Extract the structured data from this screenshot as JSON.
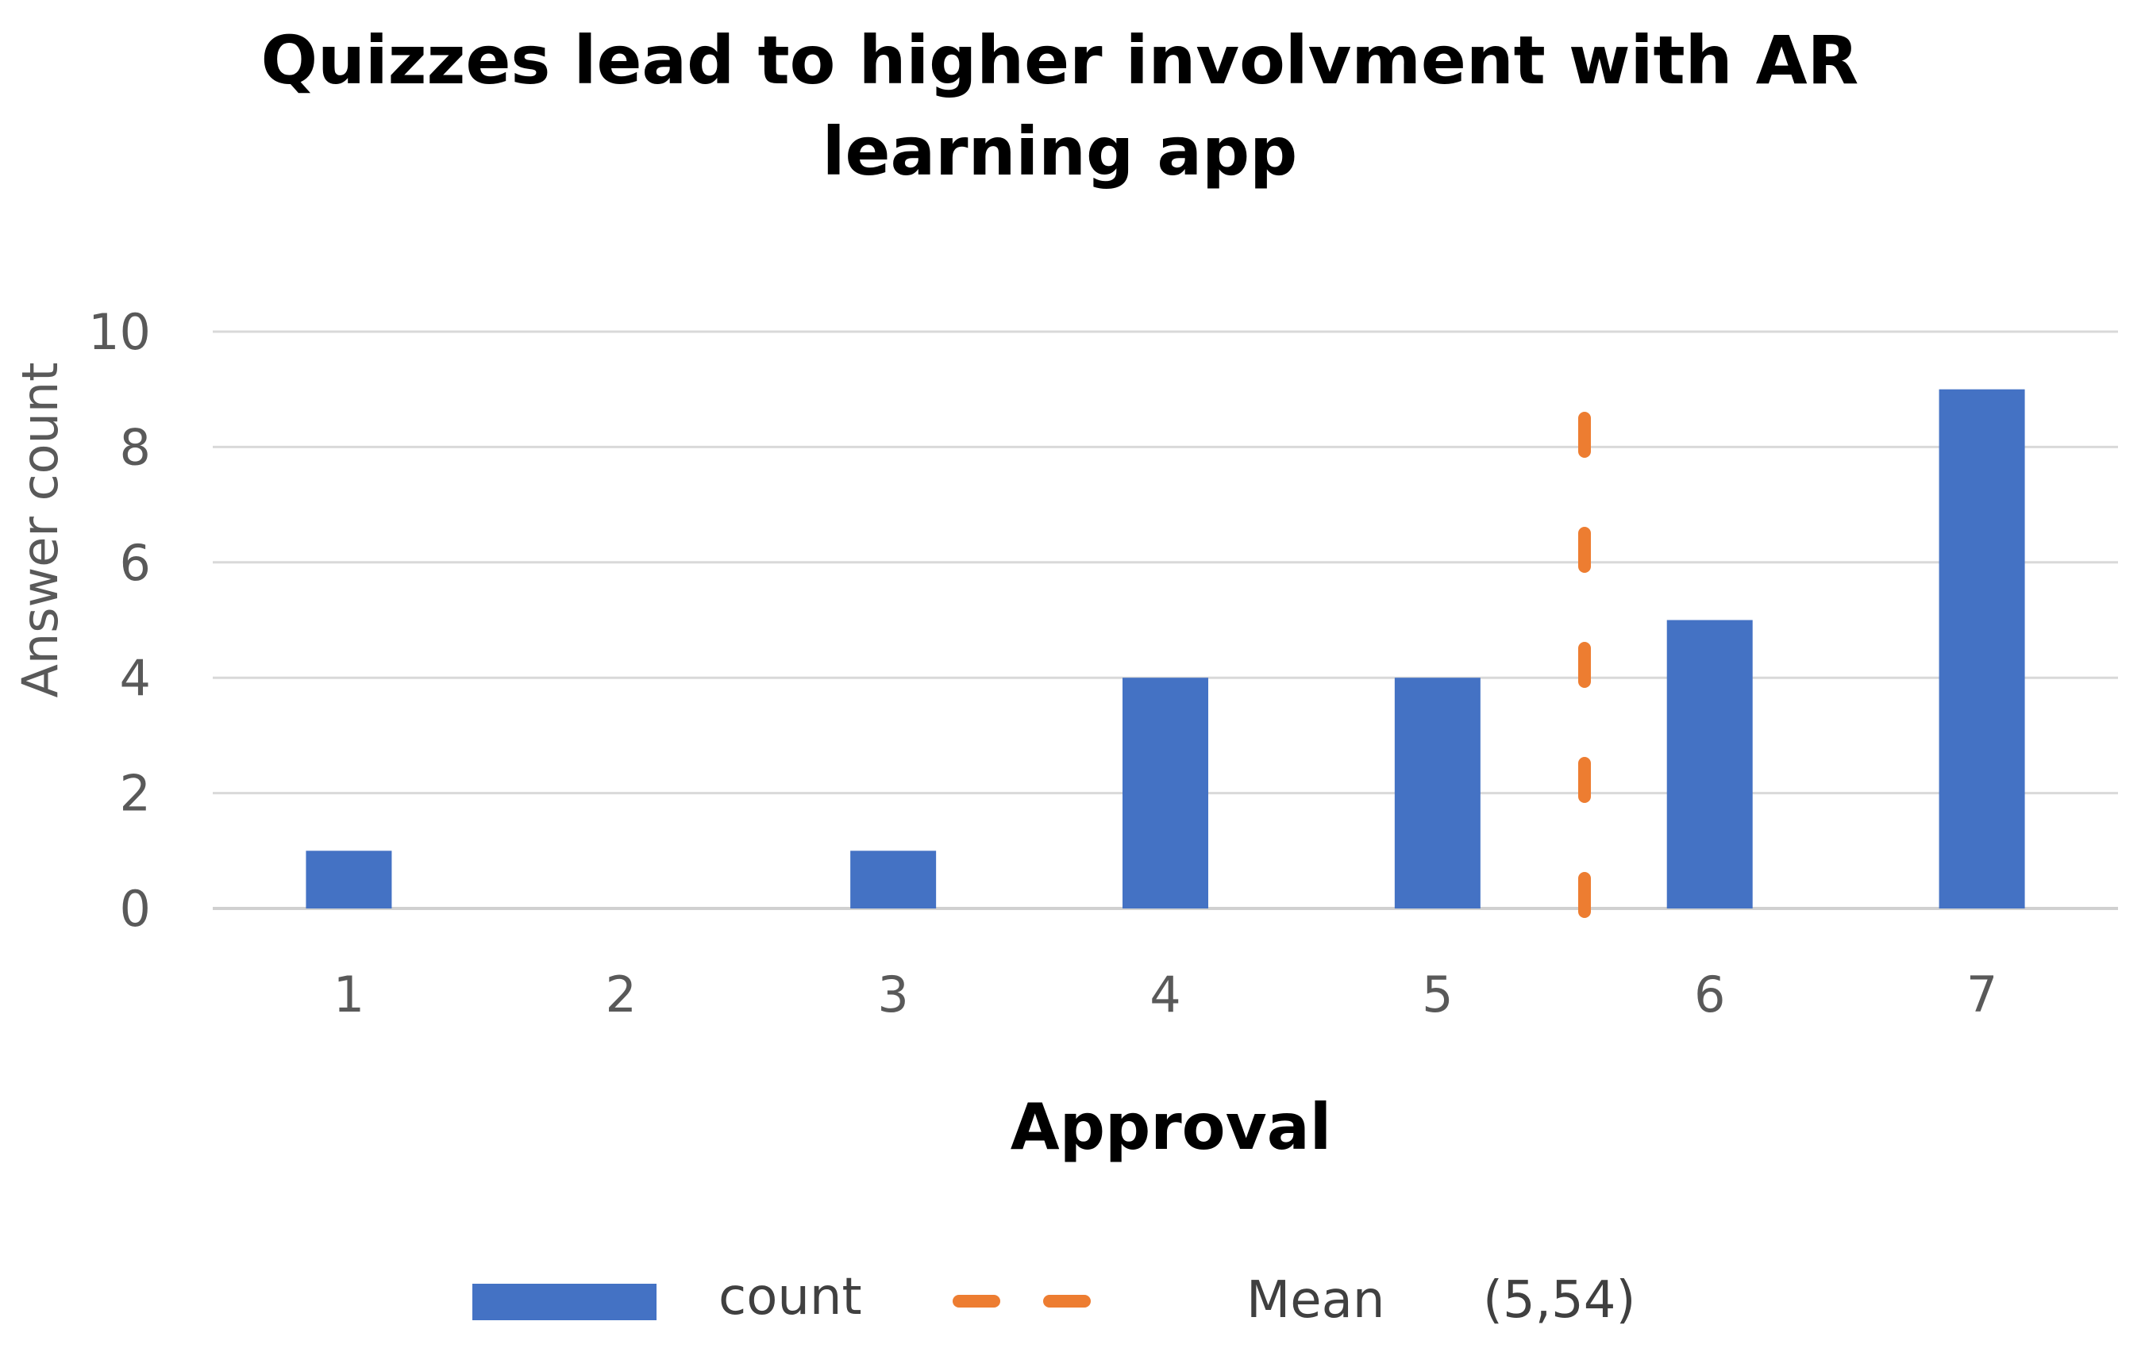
{
  "chart_data": {
    "type": "bar",
    "title_lines": [
      "Quizzes lead to higher involvment with AR",
      "learning app"
    ],
    "xlabel": "Approval",
    "ylabel": "Answer count",
    "categories": [
      "1",
      "2",
      "3",
      "4",
      "5",
      "6",
      "7"
    ],
    "series": [
      {
        "name": "count",
        "values": [
          1,
          0,
          1,
          4,
          4,
          5,
          9
        ],
        "color": "#4472C4"
      }
    ],
    "mean": {
      "name": "Mean",
      "value": 5.54,
      "label": "(5,54)",
      "color": "#ED7D31",
      "style": "dashed",
      "line_top": 9
    },
    "ylim": [
      0,
      10
    ],
    "yticks": [
      "0",
      "2",
      "4",
      "6",
      "8",
      "10"
    ],
    "grid": true,
    "legend_position": "bottom"
  }
}
